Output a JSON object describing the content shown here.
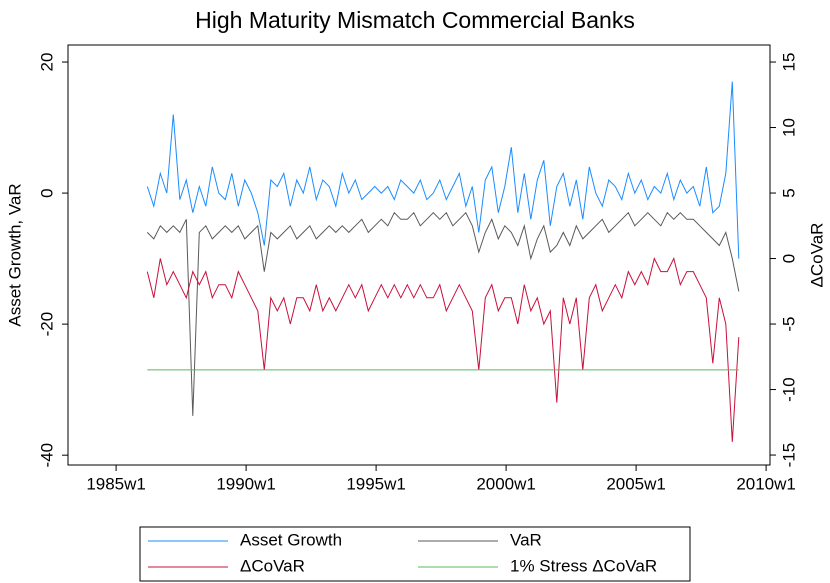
{
  "chart_data": {
    "type": "line",
    "title": "High Maturity Mismatch Commercial Banks",
    "ylabel": "Asset Growth, VaR",
    "y2label": "ΔCoVaR",
    "x": [
      1986.2,
      1986.45,
      1986.7,
      1986.95,
      1987.2,
      1987.45,
      1987.7,
      1987.95,
      1988.2,
      1988.45,
      1988.7,
      1988.95,
      1989.2,
      1989.45,
      1989.7,
      1989.95,
      1990.2,
      1990.45,
      1990.7,
      1990.95,
      1991.2,
      1991.45,
      1991.7,
      1991.95,
      1992.2,
      1992.45,
      1992.7,
      1992.95,
      1993.2,
      1993.45,
      1993.7,
      1993.95,
      1994.2,
      1994.45,
      1994.7,
      1994.95,
      1995.2,
      1995.45,
      1995.7,
      1995.95,
      1996.2,
      1996.45,
      1996.7,
      1996.95,
      1997.2,
      1997.45,
      1997.7,
      1997.95,
      1998.2,
      1998.45,
      1998.7,
      1998.95,
      1999.2,
      1999.45,
      1999.7,
      1999.95,
      2000.2,
      2000.45,
      2000.7,
      2000.95,
      2001.2,
      2001.45,
      2001.7,
      2001.95,
      2002.2,
      2002.45,
      2002.7,
      2002.95,
      2003.2,
      2003.45,
      2003.7,
      2003.95,
      2004.2,
      2004.45,
      2004.7,
      2004.95,
      2005.2,
      2005.45,
      2005.7,
      2005.95,
      2006.2,
      2006.45,
      2006.7,
      2006.95,
      2007.2,
      2007.45,
      2007.7,
      2007.95,
      2008.2,
      2008.45,
      2008.7,
      2008.95
    ],
    "series": [
      {
        "name": "Asset Growth",
        "color": "#1a8cff",
        "values": [
          1,
          -2,
          3,
          0,
          12,
          -1,
          2,
          -3,
          1,
          -2,
          4,
          0,
          -1,
          3,
          -2,
          2,
          0,
          -3,
          -8,
          2,
          1,
          3,
          -2,
          2,
          0,
          4,
          -1,
          2,
          1,
          -2,
          3,
          0,
          2,
          -1,
          0,
          1,
          0,
          1,
          -1,
          2,
          1,
          0,
          2,
          -1,
          0,
          2,
          -1,
          1,
          3,
          -2,
          1,
          -6,
          2,
          4,
          -3,
          1,
          7,
          -3,
          3,
          -4,
          2,
          5,
          -5,
          1,
          3,
          -2,
          2,
          -4,
          4,
          0,
          -2,
          2,
          1,
          -1,
          3,
          0,
          2,
          -1,
          1,
          0,
          3,
          -1,
          2,
          0,
          1,
          -2,
          4,
          -3,
          -2,
          3,
          17,
          -10
        ]
      },
      {
        "name": "VaR",
        "color": "#5a5a5a",
        "values": [
          -6,
          -7,
          -5,
          -6,
          -5,
          -6,
          -4,
          -34,
          -6,
          -5,
          -7,
          -6,
          -5,
          -6,
          -5,
          -7,
          -6,
          -5,
          -12,
          -6,
          -7,
          -6,
          -5,
          -7,
          -6,
          -5,
          -7,
          -6,
          -5,
          -6,
          -5,
          -6,
          -5,
          -4,
          -6,
          -5,
          -4,
          -5,
          -3,
          -4,
          -4,
          -3,
          -5,
          -4,
          -3,
          -4,
          -3,
          -5,
          -4,
          -3,
          -5,
          -9,
          -6,
          -4,
          -7,
          -5,
          -6,
          -8,
          -5,
          -10,
          -7,
          -5,
          -9,
          -8,
          -6,
          -8,
          -5,
          -7,
          -6,
          -5,
          -4,
          -6,
          -5,
          -4,
          -3,
          -5,
          -4,
          -3,
          -4,
          -5,
          -3,
          -4,
          -3,
          -4,
          -4,
          -5,
          -6,
          -7,
          -8,
          -6,
          -10,
          -15
        ]
      },
      {
        "name": "ΔCoVaR",
        "color": "#c8103c",
        "axis": "y2",
        "values": [
          -1,
          -3,
          0,
          -2,
          -1,
          -2,
          -3,
          -1,
          -2,
          -1,
          -3,
          -2,
          -2,
          -3,
          -1,
          -2,
          -3,
          -4,
          -8.5,
          -3,
          -4,
          -3,
          -5,
          -3,
          -3,
          -4,
          -2,
          -4,
          -3,
          -4,
          -3,
          -2,
          -3,
          -2,
          -4,
          -3,
          -2,
          -3,
          -2,
          -3,
          -2,
          -3,
          -2,
          -3,
          -3,
          -2,
          -4,
          -3,
          -2,
          -3,
          -4,
          -8.5,
          -3,
          -2,
          -4,
          -3,
          -3,
          -5,
          -2,
          -4,
          -3,
          -5,
          -4,
          -11,
          -3,
          -5,
          -3,
          -8.5,
          -3,
          -2,
          -4,
          -3,
          -2,
          -3,
          -1,
          -2,
          -1,
          -2,
          0,
          -1,
          -1,
          0,
          -2,
          -1,
          -1,
          -2,
          -3,
          -8,
          -3,
          -5,
          -14,
          -6
        ]
      },
      {
        "name": "1% Stress ΔCoVaR",
        "color": "#5cb85c",
        "axis": "y2",
        "x": [
          1986.2,
          2008.95
        ],
        "values": [
          -8.5,
          -8.5
        ]
      }
    ],
    "xlim": [
      1983.15,
      2010.15
    ],
    "xticks": [
      {
        "value": 1985,
        "label": "1985w1"
      },
      {
        "value": 1990,
        "label": "1990w1"
      },
      {
        "value": 1995,
        "label": "1995w1"
      },
      {
        "value": 2000,
        "label": "2000w1"
      },
      {
        "value": 2005,
        "label": "2005w1"
      },
      {
        "value": 2010,
        "label": "2010w1"
      }
    ],
    "ylim": [
      -41.5,
      22.6
    ],
    "yticks": [
      -40,
      -20,
      0,
      20
    ],
    "y2lim": [
      -15.76,
      16.3
    ],
    "y2ticks": [
      -15,
      -10,
      -5,
      0,
      5,
      10,
      15
    ],
    "legend": "bottom"
  }
}
